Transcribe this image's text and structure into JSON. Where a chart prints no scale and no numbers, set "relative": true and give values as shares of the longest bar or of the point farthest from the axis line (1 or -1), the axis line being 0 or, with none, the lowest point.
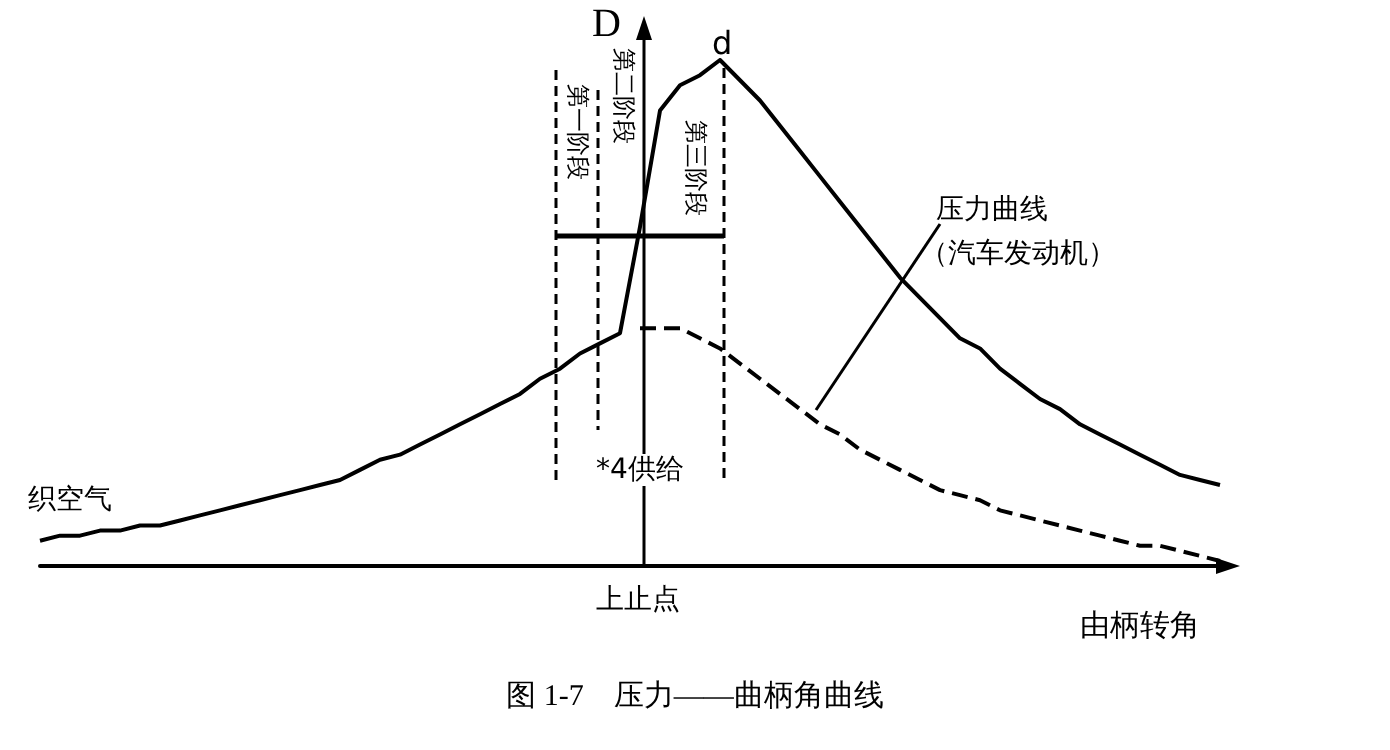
{
  "chart_data": {
    "type": "line",
    "relative": true,
    "title": "图 1-7    压力——曲柄角曲线",
    "xlabel": "由柄转角",
    "ylabel": "D",
    "categories": [
      null,
      null,
      null,
      null,
      null,
      null,
      null,
      null,
      null,
      null,
      null,
      null,
      null,
      null,
      null,
      null,
      null,
      null,
      null,
      null,
      null,
      null,
      null,
      null,
      null,
      null,
      null,
      null,
      null,
      null,
      null,
      null,
      null,
      null,
      null,
      null,
      null,
      null,
      null,
      null,
      null,
      null,
      null,
      null,
      null,
      null,
      null,
      null,
      null,
      null,
      null,
      null,
      null,
      null,
      null,
      null,
      null,
      null,
      null,
      null
    ],
    "series": [
      {
        "color": "#000000",
        "line_style": "solid",
        "values": [
          0.05,
          0.06,
          0.06,
          0.07,
          0.07,
          0.08,
          0.08,
          0.09,
          0.1,
          0.11,
          0.12,
          0.13,
          0.14,
          0.15,
          0.16,
          0.17,
          0.19,
          0.21,
          0.22,
          0.24,
          0.26,
          0.28,
          0.3,
          0.32,
          0.34,
          0.37,
          0.39,
          0.42,
          0.44,
          0.46,
          0.67,
          0.9,
          0.95,
          0.97,
          1.0,
          0.96,
          0.92,
          0.87,
          0.82,
          0.77,
          0.72,
          0.67,
          0.62,
          0.57,
          0.53,
          0.49,
          0.45,
          0.43,
          0.39,
          0.36,
          0.33,
          0.31,
          0.28,
          0.26,
          0.24,
          0.22,
          0.2,
          0.18,
          0.17,
          0.16
        ]
      },
      {
        "color": "#000000",
        "line_style": "dashed",
        "values": [
          null,
          null,
          null,
          null,
          null,
          null,
          null,
          null,
          null,
          null,
          null,
          null,
          null,
          null,
          null,
          null,
          null,
          null,
          null,
          null,
          null,
          null,
          null,
          null,
          null,
          null,
          null,
          null,
          null,
          null,
          0.47,
          0.47,
          0.47,
          0.45,
          0.43,
          0.4,
          0.37,
          0.34,
          0.31,
          0.28,
          0.26,
          0.23,
          0.21,
          0.19,
          0.17,
          0.15,
          0.14,
          0.13,
          0.11,
          0.1,
          0.09,
          0.08,
          0.07,
          0.06,
          0.05,
          0.04,
          0.04,
          0.03,
          0.02,
          0.01
        ]
      }
    ],
    "annotations": [
      "d",
      "第一阶段",
      "第二阶段",
      "第三阶段",
      "*4供给",
      "织空气",
      "压力曲线",
      "（汽车发动机）",
      "上止点"
    ],
    "marker": "none"
  }
}
